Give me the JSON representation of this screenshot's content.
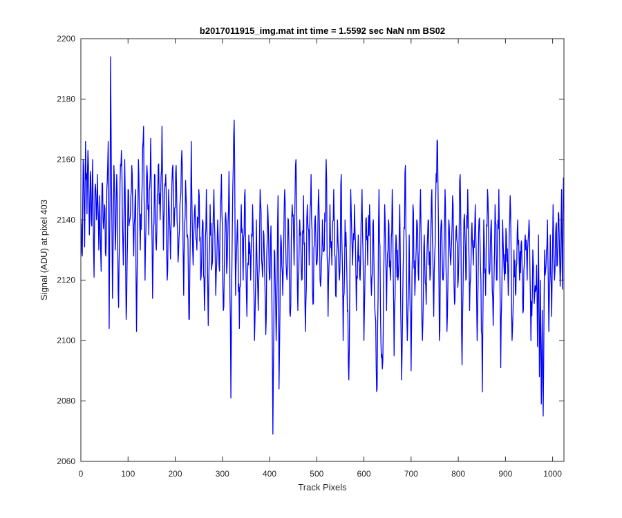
{
  "chart_data": {
    "type": "line",
    "title": "b2017011915_img.mat int time = 1.5592 sec  NaN nm BS02",
    "xlabel": "Track Pixels",
    "ylabel": "Signal (ADU) at pixel 403",
    "xlim": [
      0,
      1024
    ],
    "ylim": [
      2060,
      2200
    ],
    "xticks": [
      0,
      100,
      200,
      300,
      400,
      500,
      600,
      700,
      800,
      900,
      1000
    ],
    "yticks": [
      2060,
      2080,
      2100,
      2120,
      2140,
      2160,
      2180,
      2200
    ],
    "grid": false,
    "series": [
      {
        "name": "signal",
        "color": "#0000ff",
        "anchors": [
          [
            0,
            2140
          ],
          [
            3,
            2128
          ],
          [
            5,
            2160
          ],
          [
            8,
            2131
          ],
          [
            10,
            2166
          ],
          [
            13,
            2142
          ],
          [
            15,
            2163
          ],
          [
            18,
            2135
          ],
          [
            20,
            2156
          ],
          [
            23,
            2138
          ],
          [
            25,
            2160
          ],
          [
            28,
            2121
          ],
          [
            30,
            2150
          ],
          [
            33,
            2140
          ],
          [
            35,
            2155
          ],
          [
            38,
            2130
          ],
          [
            40,
            2148
          ],
          [
            43,
            2123
          ],
          [
            45,
            2152
          ],
          [
            48,
            2137
          ],
          [
            50,
            2145
          ],
          [
            53,
            2128
          ],
          [
            55,
            2150
          ],
          [
            58,
            2166
          ],
          [
            60,
            2104
          ],
          [
            62,
            2150
          ],
          [
            63,
            2194
          ],
          [
            65,
            2150
          ],
          [
            67,
            2114
          ],
          [
            70,
            2158
          ],
          [
            73,
            2130
          ],
          [
            76,
            2155
          ],
          [
            80,
            2111
          ],
          [
            83,
            2152
          ],
          [
            86,
            2163
          ],
          [
            90,
            2125
          ],
          [
            93,
            2160
          ],
          [
            96,
            2107
          ],
          [
            100,
            2150
          ],
          [
            104,
            2140
          ],
          [
            108,
            2158
          ],
          [
            112,
            2128
          ],
          [
            116,
            2150
          ],
          [
            118,
            2103
          ],
          [
            122,
            2160
          ],
          [
            126,
            2130
          ],
          [
            130,
            2152
          ],
          [
            133,
            2171
          ],
          [
            136,
            2120
          ],
          [
            140,
            2158
          ],
          [
            144,
            2135
          ],
          [
            148,
            2167
          ],
          [
            152,
            2114
          ],
          [
            156,
            2155
          ],
          [
            160,
            2130
          ],
          [
            164,
            2158
          ],
          [
            168,
            2140
          ],
          [
            172,
            2171
          ],
          [
            175,
            2130
          ],
          [
            180,
            2155
          ],
          [
            183,
            2120
          ],
          [
            186,
            2150
          ],
          [
            190,
            2127
          ],
          [
            194,
            2157
          ],
          [
            198,
            2138
          ],
          [
            202,
            2158
          ],
          [
            206,
            2126
          ],
          [
            210,
            2145
          ],
          [
            214,
            2163
          ],
          [
            218,
            2115
          ],
          [
            222,
            2153
          ],
          [
            226,
            2135
          ],
          [
            230,
            2107
          ],
          [
            234,
            2166
          ],
          [
            238,
            2125
          ],
          [
            242,
            2145
          ],
          [
            246,
            2130
          ],
          [
            250,
            2150
          ],
          [
            254,
            2120
          ],
          [
            258,
            2140
          ],
          [
            262,
            2110
          ],
          [
            266,
            2150
          ],
          [
            270,
            2105
          ],
          [
            274,
            2145
          ],
          [
            278,
            2125
          ],
          [
            282,
            2150
          ],
          [
            286,
            2115
          ],
          [
            290,
            2140
          ],
          [
            294,
            2123
          ],
          [
            298,
            2155
          ],
          [
            302,
            2110
          ],
          [
            306,
            2140
          ],
          [
            310,
            2125
          ],
          [
            314,
            2156
          ],
          [
            318,
            2081
          ],
          [
            322,
            2150
          ],
          [
            325,
            2173
          ],
          [
            328,
            2115
          ],
          [
            332,
            2140
          ],
          [
            336,
            2104
          ],
          [
            340,
            2145
          ],
          [
            344,
            2120
          ],
          [
            348,
            2150
          ],
          [
            352,
            2108
          ],
          [
            356,
            2135
          ],
          [
            360,
            2120
          ],
          [
            364,
            2145
          ],
          [
            368,
            2100
          ],
          [
            372,
            2140
          ],
          [
            376,
            2110
          ],
          [
            380,
            2150
          ],
          [
            384,
            2125
          ],
          [
            388,
            2135
          ],
          [
            392,
            2102
          ],
          [
            396,
            2145
          ],
          [
            400,
            2120
          ],
          [
            403,
            2138
          ],
          [
            406,
            2095
          ],
          [
            407,
            2069
          ],
          [
            410,
            2130
          ],
          [
            414,
            2100
          ],
          [
            418,
            2148
          ],
          [
            420,
            2084
          ],
          [
            424,
            2135
          ],
          [
            428,
            2115
          ],
          [
            432,
            2150
          ],
          [
            436,
            2122
          ],
          [
            440,
            2140
          ],
          [
            444,
            2108
          ],
          [
            448,
            2145
          ],
          [
            452,
            2125
          ],
          [
            456,
            2160
          ],
          [
            460,
            2110
          ],
          [
            464,
            2140
          ],
          [
            468,
            2120
          ],
          [
            472,
            2148
          ],
          [
            476,
            2103
          ],
          [
            480,
            2145
          ],
          [
            484,
            2125
          ],
          [
            488,
            2155
          ],
          [
            492,
            2112
          ],
          [
            496,
            2140
          ],
          [
            500,
            2125
          ],
          [
            504,
            2150
          ],
          [
            508,
            2118
          ],
          [
            512,
            2140
          ],
          [
            516,
            2130
          ],
          [
            520,
            2160
          ],
          [
            524,
            2108
          ],
          [
            528,
            2145
          ],
          [
            532,
            2125
          ],
          [
            536,
            2150
          ],
          [
            540,
            2115
          ],
          [
            544,
            2140
          ],
          [
            548,
            2120
          ],
          [
            552,
            2155
          ],
          [
            556,
            2100
          ],
          [
            560,
            2140
          ],
          [
            564,
            2120
          ],
          [
            568,
            2087
          ],
          [
            572,
            2150
          ],
          [
            576,
            2125
          ],
          [
            580,
            2145
          ],
          [
            584,
            2110
          ],
          [
            588,
            2135
          ],
          [
            592,
            2120
          ],
          [
            596,
            2150
          ],
          [
            600,
            2100
          ],
          [
            604,
            2140
          ],
          [
            608,
            2125
          ],
          [
            612,
            2145
          ],
          [
            616,
            2115
          ],
          [
            620,
            2140
          ],
          [
            624,
            2108
          ],
          [
            628,
            2084
          ],
          [
            632,
            2150
          ],
          [
            636,
            2100
          ],
          [
            640,
            2093
          ],
          [
            644,
            2145
          ],
          [
            648,
            2110
          ],
          [
            652,
            2140
          ],
          [
            656,
            2120
          ],
          [
            660,
            2150
          ],
          [
            664,
            2095
          ],
          [
            668,
            2135
          ],
          [
            672,
            2120
          ],
          [
            676,
            2145
          ],
          [
            680,
            2087
          ],
          [
            684,
            2130
          ],
          [
            688,
            2158
          ],
          [
            692,
            2100
          ],
          [
            696,
            2135
          ],
          [
            700,
            2090
          ],
          [
            704,
            2145
          ],
          [
            708,
            2115
          ],
          [
            712,
            2140
          ],
          [
            716,
            2120
          ],
          [
            720,
            2150
          ],
          [
            724,
            2100
          ],
          [
            728,
            2135
          ],
          [
            732,
            2112
          ],
          [
            736,
            2140
          ],
          [
            740,
            2120
          ],
          [
            744,
            2150
          ],
          [
            748,
            2108
          ],
          [
            752,
            2145
          ],
          [
            756,
            2166
          ],
          [
            760,
            2100
          ],
          [
            764,
            2140
          ],
          [
            768,
            2120
          ],
          [
            772,
            2150
          ],
          [
            776,
            2103
          ],
          [
            780,
            2140
          ],
          [
            784,
            2125
          ],
          [
            788,
            2148
          ],
          [
            792,
            2112
          ],
          [
            796,
            2138
          ],
          [
            800,
            2120
          ],
          [
            804,
            2155
          ],
          [
            808,
            2092
          ],
          [
            812,
            2140
          ],
          [
            816,
            2120
          ],
          [
            820,
            2150
          ],
          [
            824,
            2110
          ],
          [
            828,
            2135
          ],
          [
            832,
            2125
          ],
          [
            836,
            2145
          ],
          [
            840,
            2100
          ],
          [
            844,
            2140
          ],
          [
            848,
            2120
          ],
          [
            851,
            2083
          ],
          [
            854,
            2140
          ],
          [
            858,
            2115
          ],
          [
            862,
            2150
          ],
          [
            866,
            2122
          ],
          [
            870,
            2140
          ],
          [
            874,
            2105
          ],
          [
            878,
            2145
          ],
          [
            882,
            2120
          ],
          [
            886,
            2150
          ],
          [
            890,
            2091
          ],
          [
            894,
            2140
          ],
          [
            898,
            2120
          ],
          [
            902,
            2135
          ],
          [
            906,
            2115
          ],
          [
            910,
            2148
          ],
          [
            914,
            2100
          ],
          [
            918,
            2130
          ],
          [
            922,
            2115
          ],
          [
            926,
            2140
          ],
          [
            930,
            2120
          ],
          [
            934,
            2133
          ],
          [
            938,
            2110
          ],
          [
            942,
            2135
          ],
          [
            946,
            2120
          ],
          [
            950,
            2140
          ],
          [
            954,
            2100
          ],
          [
            958,
            2130
          ],
          [
            962,
            2115
          ],
          [
            966,
            2125
          ],
          [
            968,
            2098
          ],
          [
            970,
            2135
          ],
          [
            972,
            2088
          ],
          [
            974,
            2120
          ],
          [
            976,
            2079
          ],
          [
            978,
            2110
          ],
          [
            980,
            2075
          ],
          [
            983,
            2130
          ],
          [
            986,
            2125
          ],
          [
            989,
            2140
          ],
          [
            992,
            2103
          ],
          [
            995,
            2135
          ],
          [
            998,
            2108
          ],
          [
            1001,
            2145
          ],
          [
            1004,
            2120
          ],
          [
            1007,
            2138
          ],
          [
            1010,
            2125
          ],
          [
            1013,
            2142
          ],
          [
            1016,
            2118
          ],
          [
            1019,
            2150
          ],
          [
            1021,
            2117
          ],
          [
            1023,
            2154
          ]
        ]
      }
    ]
  }
}
